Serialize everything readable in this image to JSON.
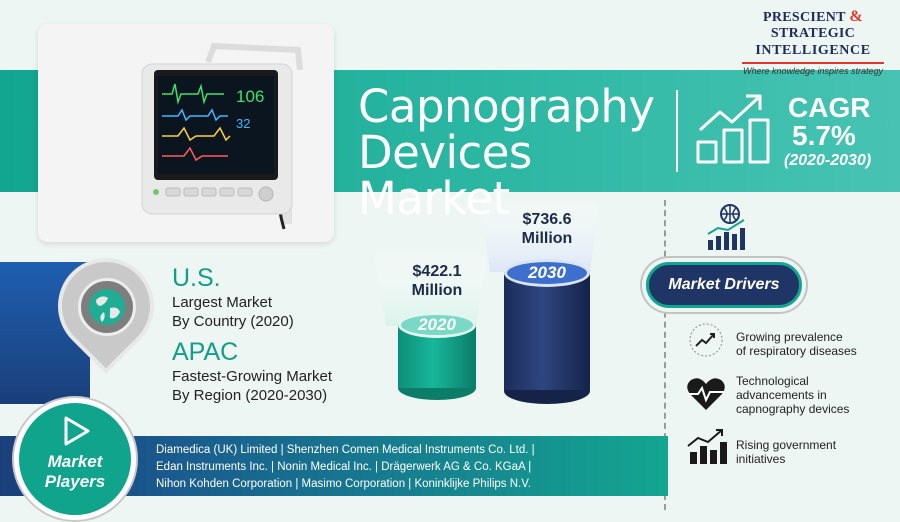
{
  "logo": {
    "line1": "PRESCIENT",
    "amp": "&",
    "line1b": "STRATEGIC",
    "line2": "INTELLIGENCE",
    "tagline": "Where knowledge inspires strategy"
  },
  "header": {
    "title_line1": "Capnography",
    "title_line2": "Devices Market",
    "cagr_label": "CAGR",
    "cagr_value": "5.7%",
    "cagr_period": "(2020-2030)"
  },
  "regions": [
    {
      "name": "U.S.",
      "line1": "Largest Market",
      "line2": "By Country (2020)"
    },
    {
      "name": "APAC",
      "line1": "Fastest-Growing Market",
      "line2": "By Region (2020-2030)"
    }
  ],
  "market_size": [
    {
      "year": "2020",
      "value_line1": "$422.1",
      "value_line2": "Million"
    },
    {
      "year": "2030",
      "value_line1": "$736.6",
      "value_line2": "Million"
    }
  ],
  "drivers": {
    "title": "Market Drivers",
    "items": [
      {
        "icon": "growth-chart-icon",
        "line1": "Growing prevalence",
        "line2": "of respiratory diseases",
        "line3": ""
      },
      {
        "icon": "heartbeat-icon",
        "line1": "Technological",
        "line2": "advancements in",
        "line3": "capnography devices"
      },
      {
        "icon": "bar-chart-up-icon",
        "line1": "Rising government",
        "line2": "initiatives",
        "line3": ""
      }
    ]
  },
  "players": {
    "label_line1": "Market",
    "label_line2": "Players",
    "line1": "Diamedica (UK) Limited | Shenzhen Comen Medical Instruments Co. Ltd. |",
    "line2": "Edan Instruments Inc. | Nonin Medical Inc. | Drägerwerk AG & Co. KGaA |",
    "line3": "Nihon Kohden Corporation | Masimo Corporation | Koninklijke Philips N.V."
  },
  "monitor": {
    "reading1": "106",
    "reading2": "32"
  },
  "colors": {
    "teal": "#12a58f",
    "navy": "#1f3566",
    "accent_red": "#e3362b",
    "background": "#eef6f3"
  }
}
